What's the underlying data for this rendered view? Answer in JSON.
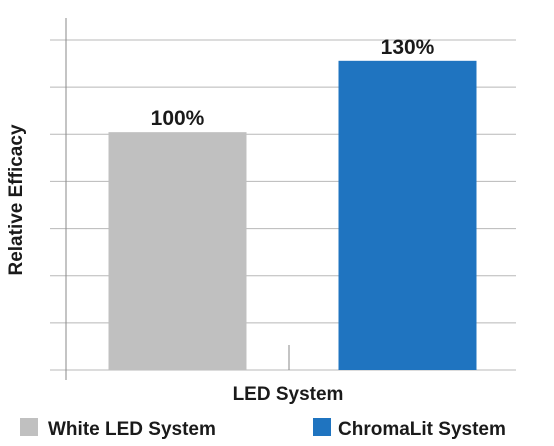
{
  "chart_data": {
    "type": "bar",
    "title": "",
    "xlabel": "LED System",
    "ylabel": "Relative Efficacy",
    "categories": [
      "White LED System",
      "ChromaLit System"
    ],
    "values": [
      100,
      130
    ],
    "value_labels": [
      "100%",
      "130%"
    ],
    "colors": [
      "#c0c0c0",
      "#1f74c0"
    ],
    "ylim": [
      0,
      148
    ],
    "grid": true,
    "y_tick_labels_shown": false,
    "legend": {
      "position": "bottom",
      "entries": [
        {
          "label": "White LED System",
          "color": "#c0c0c0"
        },
        {
          "label": "ChromaLit System",
          "color": "#1f74c0"
        }
      ]
    }
  }
}
